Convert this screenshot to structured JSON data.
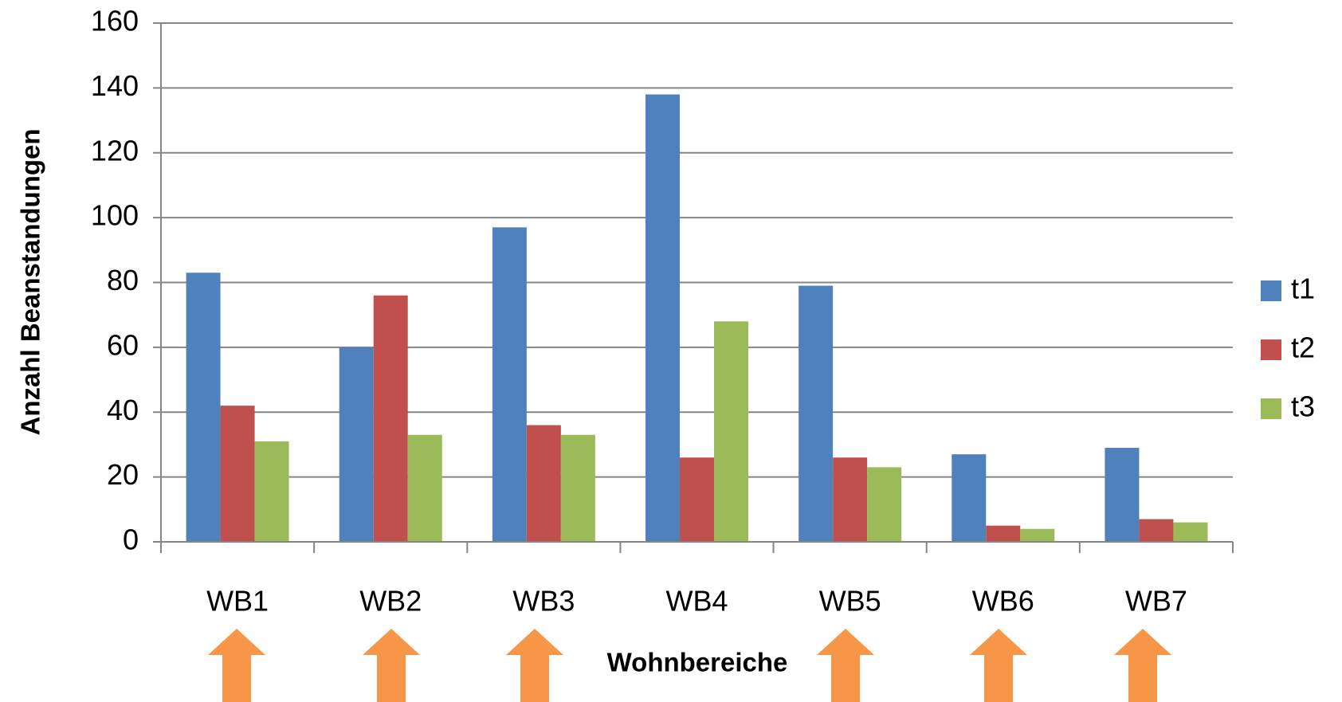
{
  "chart_data": {
    "type": "bar",
    "categories": [
      "WB1",
      "WB2",
      "WB3",
      "WB4",
      "WB5",
      "WB6",
      "WB7"
    ],
    "series": [
      {
        "name": "t1",
        "color": "#4f81bd",
        "values": [
          83,
          60,
          97,
          138,
          79,
          27,
          29
        ]
      },
      {
        "name": "t2",
        "color": "#c0504d",
        "values": [
          42,
          76,
          36,
          26,
          26,
          5,
          7
        ]
      },
      {
        "name": "t3",
        "color": "#9bbb59",
        "values": [
          31,
          33,
          33,
          68,
          23,
          4,
          6
        ]
      }
    ],
    "y_label": "Anzahl Beanstandungen",
    "x_label": "Wohnbereiche",
    "ylim": [
      0,
      160
    ],
    "yticks": [
      0,
      20,
      40,
      60,
      80,
      100,
      120,
      140,
      160
    ],
    "grid": true,
    "legend": "right"
  }
}
